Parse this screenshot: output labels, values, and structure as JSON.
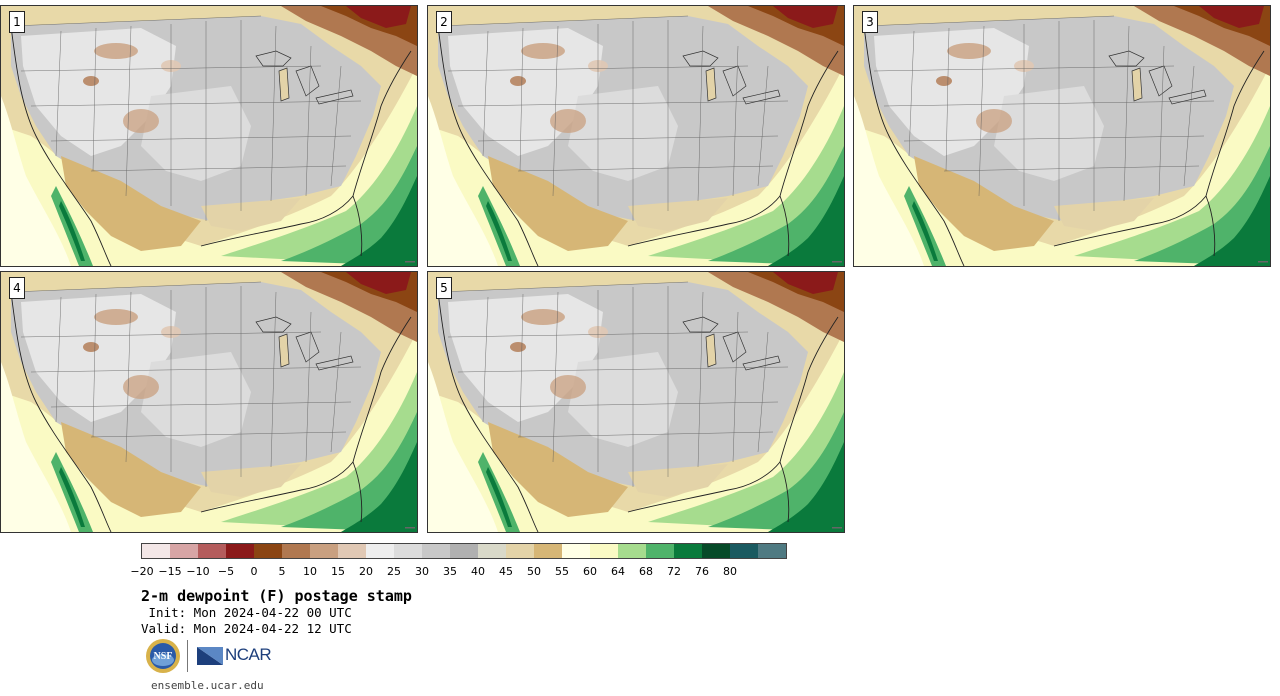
{
  "product": {
    "title": "2-m dewpoint (F) postage stamp",
    "init_line": " Init: Mon 2024-04-22 00 UTC",
    "valid_line": "Valid: Mon 2024-04-22 12 UTC",
    "website": "ensemble.ucar.edu"
  },
  "members": [
    {
      "label": "1"
    },
    {
      "label": "2"
    },
    {
      "label": "3"
    },
    {
      "label": "4"
    },
    {
      "label": "5"
    }
  ],
  "colorbar": {
    "colors": [
      "#f3e7e7",
      "#d7a5a5",
      "#b45c5c",
      "#8b1a1a",
      "#8b4513",
      "#b07850",
      "#c9a080",
      "#e0c8b4",
      "#eeeeee",
      "#dcdcdc",
      "#c8c8c8",
      "#b0b0b0",
      "#d9d9c9",
      "#e3d3a8",
      "#d6b676",
      "#ffffe6",
      "#fafac4",
      "#a6dc8e",
      "#4fb36a",
      "#0a7a3c",
      "#064a28",
      "#1a5a60",
      "#4f7a82"
    ],
    "tick_labels": [
      "-20",
      "-15",
      "-10",
      "-5",
      "0",
      "5",
      "10",
      "15",
      "20",
      "25",
      "30",
      "35",
      "40",
      "45",
      "50",
      "55",
      "60",
      "64",
      "68",
      "72",
      "76",
      "80"
    ]
  },
  "logos": {
    "nsf_text": "NSF",
    "ncar_text": "NCAR"
  }
}
